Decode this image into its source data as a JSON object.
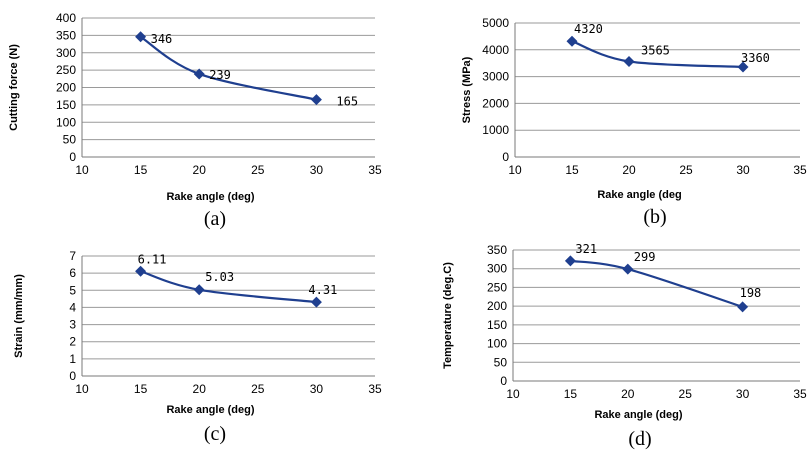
{
  "chart_data": [
    {
      "type": "line",
      "caption": "(a)",
      "x": [
        15,
        20,
        30
      ],
      "series": [
        {
          "values": [
            346,
            239,
            165
          ],
          "labels": [
            "346",
            "239",
            "165"
          ]
        }
      ],
      "xlabel": "Rake angle (deg)",
      "ylabel": "Cutting force (N)",
      "xlim": [
        10,
        35
      ],
      "xticks": [
        10,
        15,
        20,
        25,
        30,
        35
      ],
      "ylim": [
        0,
        400
      ],
      "yticks": [
        0,
        50,
        100,
        150,
        200,
        250,
        300,
        350,
        400
      ],
      "grid": "horizontal",
      "color": "#1f3f8f"
    },
    {
      "type": "line",
      "caption": "(b)",
      "x": [
        15,
        20,
        30
      ],
      "series": [
        {
          "values": [
            4320,
            3565,
            3360
          ],
          "labels": [
            "4320",
            "3565",
            "3360"
          ]
        }
      ],
      "xlabel": "Rake angle (deg",
      "ylabel": "Stress (MPa)",
      "xlim": [
        10,
        35
      ],
      "xticks": [
        10,
        15,
        20,
        25,
        30,
        35
      ],
      "ylim": [
        0,
        5000
      ],
      "yticks": [
        0,
        1000,
        2000,
        3000,
        4000,
        5000
      ],
      "grid": "horizontal",
      "color": "#1f3f8f"
    },
    {
      "type": "line",
      "caption": "(c)",
      "x": [
        15,
        20,
        30
      ],
      "series": [
        {
          "values": [
            6.11,
            5.03,
            4.31
          ],
          "labels": [
            "6.11",
            "5.03",
            "4.31"
          ]
        }
      ],
      "xlabel": "Rake angle (deg)",
      "ylabel": "Strain (mm/mm)",
      "xlim": [
        10,
        35
      ],
      "xticks": [
        10,
        15,
        20,
        25,
        30,
        35
      ],
      "ylim": [
        0,
        7
      ],
      "yticks": [
        0,
        1,
        2,
        3,
        4,
        5,
        6,
        7
      ],
      "grid": "horizontal",
      "color": "#1f3f8f"
    },
    {
      "type": "line",
      "caption": "(d)",
      "x": [
        15,
        20,
        30
      ],
      "series": [
        {
          "values": [
            321,
            299,
            198
          ],
          "labels": [
            "321",
            "299",
            "198"
          ]
        }
      ],
      "xlabel": "Rake angle (deg)",
      "ylabel": "Temperature (deg.C)",
      "xlim": [
        10,
        35
      ],
      "xticks": [
        10,
        15,
        20,
        25,
        30,
        35
      ],
      "ylim": [
        0,
        350
      ],
      "yticks": [
        0,
        50,
        100,
        150,
        200,
        250,
        300,
        350
      ],
      "grid": "horizontal",
      "color": "#1f3f8f"
    }
  ]
}
